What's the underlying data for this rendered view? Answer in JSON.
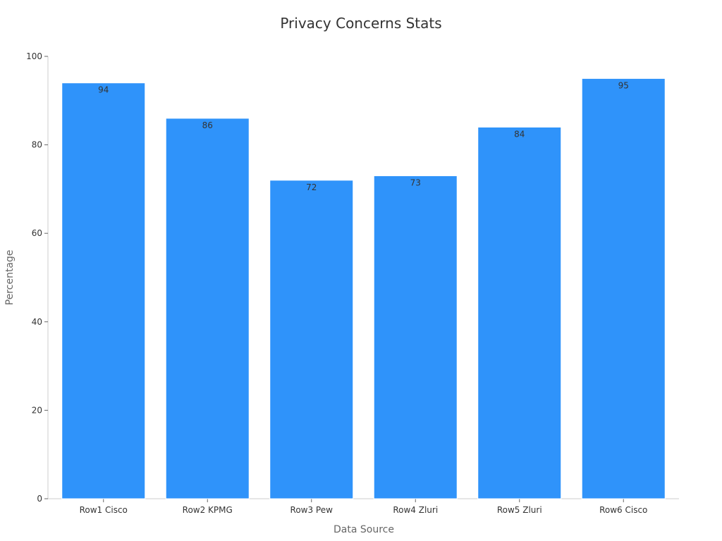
{
  "chart_data": {
    "type": "bar",
    "title": "Privacy Concerns Stats",
    "xlabel": "Data Source",
    "ylabel": "Percentage",
    "categories": [
      "Row1 Cisco",
      "Row2 KPMG",
      "Row3 Pew",
      "Row4 Zluri",
      "Row5 Zluri",
      "Row6 Cisco"
    ],
    "values": [
      94,
      86,
      72,
      73,
      84,
      95
    ],
    "ylim": [
      0,
      100
    ],
    "yticks": [
      0,
      20,
      40,
      60,
      80,
      100
    ],
    "grid": false,
    "legend": "none",
    "bar_color": "#2f93fa",
    "bar_edge_color": "#ffffff"
  }
}
